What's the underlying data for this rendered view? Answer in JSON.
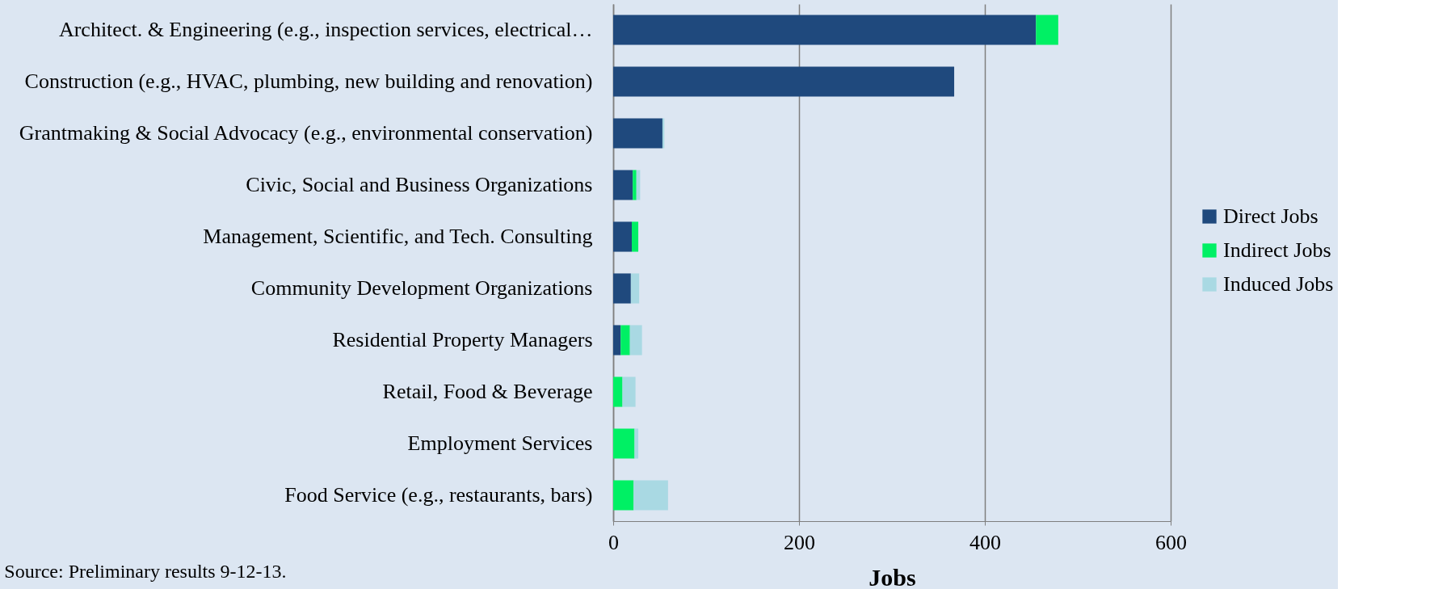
{
  "chart_data": {
    "type": "bar",
    "orientation": "horizontal",
    "stacked": true,
    "xlabel": "Jobs",
    "categories": [
      "Architect. & Engineering (e.g., inspection services, electrical…",
      "Construction (e.g., HVAC, plumbing, new building and renovation)",
      "Grantmaking & Social Advocacy  (e.g., environmental conservation)",
      "Civic, Social  and Business Organizations",
      "Management, Scientific, and Tech. Consulting",
      "Community Development Organizations",
      "Residential Property Managers",
      "Retail, Food & Beverage",
      "Employment Services",
      "Food Service (e.g., restaurants, bars)"
    ],
    "series": [
      {
        "name": "Direct Jobs",
        "color": "#1f497d",
        "values": [
          455,
          367,
          53,
          21,
          20,
          19,
          8,
          0,
          0,
          0
        ]
      },
      {
        "name": "Indirect Jobs",
        "color": "#00f064",
        "values": [
          24,
          0,
          0,
          4,
          7,
          0,
          10,
          10,
          23,
          22
        ]
      },
      {
        "name": "Induced Jobs",
        "color": "#a9d9e3",
        "values": [
          0,
          0,
          2,
          4,
          null,
          9,
          13,
          14,
          4,
          37
        ]
      }
    ],
    "xlim": [
      0,
      600
    ],
    "xticks": [
      0,
      200,
      400,
      600
    ],
    "grid": "x",
    "legend": "right",
    "annotations": [
      "Source: Preliminary results 9-12-13."
    ]
  }
}
